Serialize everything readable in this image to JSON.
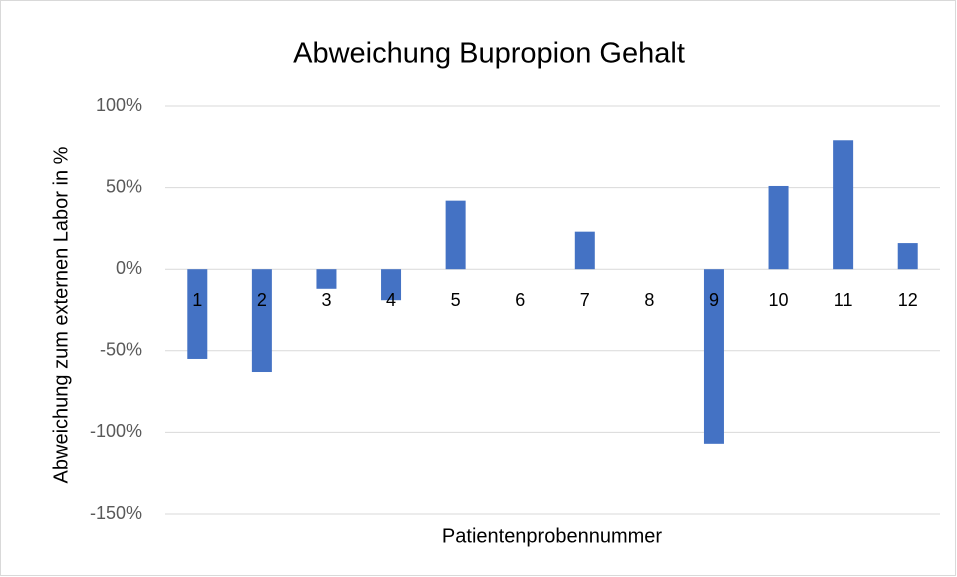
{
  "chart_data": {
    "type": "bar",
    "title": "Abweichung Bupropion Gehalt",
    "xlabel": "Patientenprobennummer",
    "ylabel": "Abweichung zum externen Labor in %",
    "categories": [
      "1",
      "2",
      "3",
      "4",
      "5",
      "6",
      "7",
      "8",
      "9",
      "10",
      "11",
      "12"
    ],
    "values": [
      -55,
      -63,
      -12,
      -19,
      42,
      0,
      23,
      0,
      -107,
      51,
      79,
      16
    ],
    "color": "#4472c4",
    "ylim": [
      -150,
      100
    ],
    "yticks": [
      {
        "value": -150,
        "label": "-150%"
      },
      {
        "value": -100,
        "label": "-100%"
      },
      {
        "value": -50,
        "label": "-50%"
      },
      {
        "value": 0,
        "label": "0%"
      },
      {
        "value": 50,
        "label": "50%"
      },
      {
        "value": 100,
        "label": "100%"
      }
    ],
    "grid": true
  }
}
